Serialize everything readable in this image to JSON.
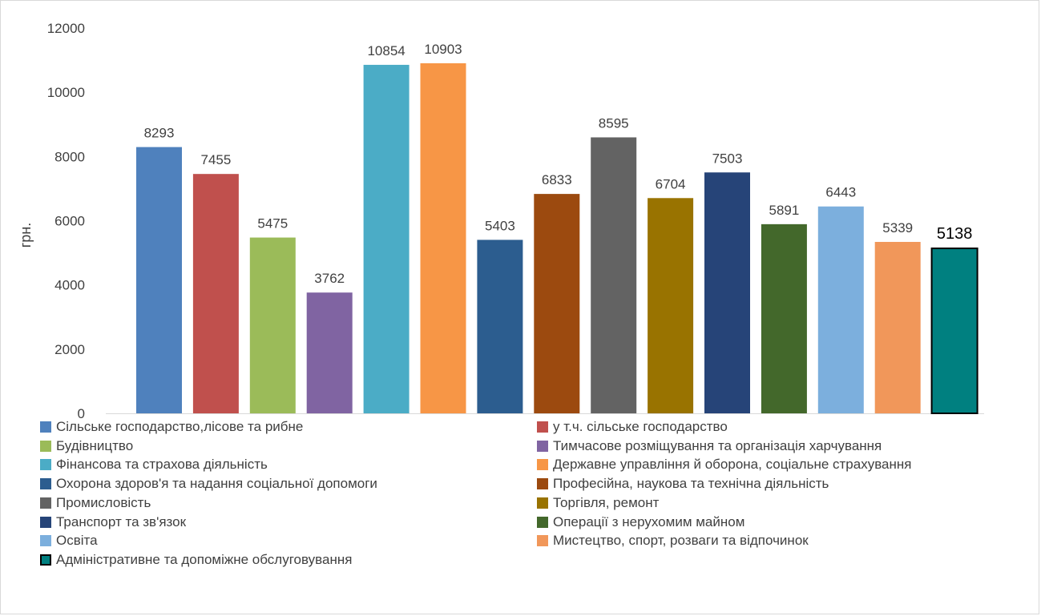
{
  "chart_data": {
    "type": "bar",
    "ylabel": "грн.",
    "ylim": [
      0,
      12000
    ],
    "yticks": [
      0,
      2000,
      4000,
      6000,
      8000,
      10000,
      12000
    ],
    "grid": false,
    "legend_position": "bottom",
    "categories": [
      "Сільське господарство,лісове та рибне",
      "у т.ч. сільське господарство",
      "Будівництво",
      "Тимчасове розміщування та організація харчування",
      "Фінансова та страхова діяльність",
      "Державне управління й оборона, соціальне страхування",
      "Охорона здоров'я та надання соціальної допомоги",
      "Професійна, наукова та технічна діяльність",
      "Промисловість",
      "Торгівля, ремонт",
      "Транспорт та зв'язок",
      "Операції з нерухомим майном",
      "Освіта",
      "Мистецтво, спорт, розваги та відпочинок",
      "Адміністративне та допоміжне обслуговування"
    ],
    "values": [
      8293,
      7455,
      5475,
      3762,
      10854,
      10903,
      5403,
      6833,
      8595,
      6704,
      7503,
      5891,
      6443,
      5339,
      5138
    ],
    "colors": [
      "#4f81bd",
      "#c0504d",
      "#9bbb59",
      "#8064a2",
      "#4bacc6",
      "#f79646",
      "#2c5d8f",
      "#9c4a0f",
      "#636363",
      "#997300",
      "#264478",
      "#43682b",
      "#7cafdd",
      "#f1975a",
      "#008080"
    ],
    "highlight_index": 14
  }
}
